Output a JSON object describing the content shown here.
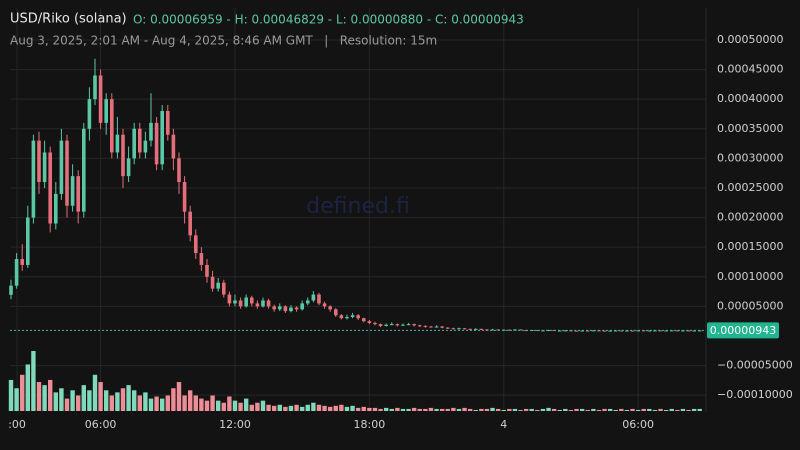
{
  "header": {
    "symbol": "USD/Riko (solana)",
    "ohlc": "O: 0.00006959 - H: 0.00046829 - L: 0.00000880 - C: 0.00000943",
    "range": "Aug 3, 2025, 2:01 AM - Aug 4, 2025, 8:46 AM GMT   |   Resolution: 15m",
    "watermark": "defined.fi"
  },
  "chart_data": {
    "type": "candlestick",
    "x": [
      2,
      2.25,
      2.5,
      2.75,
      3,
      3.25,
      3.5,
      3.75,
      4,
      4.25,
      4.5,
      4.75,
      5,
      5.25,
      5.5,
      5.75,
      6,
      6.25,
      6.5,
      6.75,
      7,
      7.25,
      7.5,
      7.75,
      8,
      8.25,
      8.5,
      8.75,
      9,
      9.25,
      9.5,
      9.75,
      10,
      10.25,
      10.5,
      10.75,
      11,
      11.25,
      11.5,
      11.75,
      12,
      12.25,
      12.5,
      12.75,
      13,
      13.25,
      13.5,
      13.75,
      14,
      14.25,
      14.5,
      14.75,
      15,
      15.25,
      15.5,
      15.75,
      16,
      16.25,
      16.5,
      16.75,
      17,
      17.25,
      17.5,
      17.75,
      18,
      18.25,
      18.5,
      18.75,
      19,
      19.25,
      19.5,
      19.75,
      20,
      20.25,
      20.5,
      20.75,
      21,
      21.25,
      21.5,
      21.75,
      22,
      22.25,
      22.5,
      22.75,
      23,
      23.25,
      23.5,
      23.75,
      24,
      24.25,
      24.5,
      24.75,
      25,
      25.25,
      25.5,
      25.75,
      26,
      26.25,
      26.5,
      26.75,
      27,
      27.25,
      27.5,
      27.75,
      28,
      28.25,
      28.5,
      28.75,
      29,
      29.25,
      29.5,
      29.75,
      30,
      30.25,
      30.5,
      30.75,
      31,
      31.25,
      31.5,
      31.75,
      32,
      32.25,
      32.5,
      32.75
    ],
    "open": [
      6.959e-05,
      8.5e-05,
      0.00013,
      0.00012,
      0.0002,
      0.00033,
      0.00026,
      0.00031,
      0.00019,
      0.00024,
      0.00033,
      0.00022,
      0.00027,
      0.00021,
      0.00035,
      0.0004,
      0.00044,
      0.00036,
      0.0004,
      0.00031,
      0.00034,
      0.00027,
      0.0003,
      0.00035,
      0.00031,
      0.00033,
      0.00036,
      0.00029,
      0.00038,
      0.00034,
      0.0003,
      0.00026,
      0.00021,
      0.00017,
      0.00014,
      0.00012,
      0.0001,
      8e-05,
      9e-05,
      7e-05,
      5.5e-05,
      6e-05,
      5e-05,
      6.5e-05,
      5.5e-05,
      5e-05,
      6e-05,
      5e-05,
      4.5e-05,
      5e-05,
      4.2e-05,
      4.8e-05,
      4.5e-05,
      5.5e-05,
      6e-05,
      7e-05,
      5.5e-05,
      5e-05,
      4.5e-05,
      3.5e-05,
      3e-05,
      3.2e-05,
      3.5e-05,
      3e-05,
      2.5e-05,
      2.2e-05,
      2e-05,
      1.7e-05,
      1.9e-05,
      2e-05,
      1.8e-05,
      1.9e-05,
      2e-05,
      1.8e-05,
      1.7e-05,
      1.6e-05,
      1.5e-05,
      1.6e-05,
      1.4e-05,
      1.3e-05,
      1.2e-05,
      1.3e-05,
      1.2e-05,
      1.1e-05,
      1.2e-05,
      1.1e-05,
      1.05e-05,
      1.1e-05,
      1e-05,
      1.05e-05,
      1e-05,
      1.1e-05,
      1e-05,
      9.5e-06,
      1e-05,
      9e-06,
      9.5e-06,
      1e-05,
      9e-06,
      9.2e-06,
      9.5e-06,
      9e-06,
      8.9e-06,
      9.2e-06,
      9e-06,
      9.5e-06,
      9e-06,
      8.9e-06,
      9e-06,
      9.3e-06,
      9e-06,
      9.2e-06,
      9e-06,
      9.5e-06,
      9e-06,
      9.2e-06,
      9.4e-06,
      9e-06,
      9.3e-06,
      9.5e-06,
      9.2e-06,
      9.4e-06,
      9.2e-06,
      9.3e-06
    ],
    "high": [
      9.5e-05,
      0.00014,
      0.000155,
      0.00022,
      0.00034,
      0.000345,
      0.00033,
      0.00032,
      0.00026,
      0.00035,
      0.00034,
      0.00029,
      0.00028,
      0.00036,
      0.00042,
      0.00046829,
      0.00045,
      0.00041,
      0.00041,
      0.00037,
      0.00035,
      0.00032,
      0.00036,
      0.00036,
      0.000345,
      0.00041,
      0.00037,
      0.00039,
      0.00039,
      0.00035,
      0.00031,
      0.00027,
      0.00022,
      0.00018,
      0.00015,
      0.00013,
      0.00011,
      9.8e-05,
      9.5e-05,
      7.5e-05,
      7e-05,
      6.5e-05,
      7e-05,
      6.8e-05,
      6e-05,
      6.5e-05,
      6.3e-05,
      5.3e-05,
      5.5e-05,
      5.2e-05,
      5.2e-05,
      5e-05,
      6e-05,
      6.5e-05,
      7.6e-05,
      7.3e-05,
      5.8e-05,
      5.2e-05,
      4.7e-05,
      3.7e-05,
      3.6e-05,
      3.9e-05,
      3.7e-05,
      3.1e-05,
      2.7e-05,
      2.4e-05,
      2.1e-05,
      2.1e-05,
      2.3e-05,
      2.1e-05,
      2.1e-05,
      2.2e-05,
      2.1e-05,
      1.9e-05,
      1.8e-05,
      1.7e-05,
      1.8e-05,
      1.7e-05,
      1.5e-05,
      1.4e-05,
      1.4e-05,
      1.35e-05,
      1.25e-05,
      1.3e-05,
      1.25e-05,
      1.15e-05,
      1.2e-05,
      1.15e-05,
      1.1e-05,
      1.1e-05,
      1.15e-05,
      1.12e-05,
      1.05e-05,
      1.05e-05,
      1.02e-05,
      1e-05,
      1.04e-05,
      1.02e-05,
      9.6e-06,
      9.8e-06,
      9.7e-06,
      9.3e-06,
      9.5e-06,
      9.4e-06,
      9.8e-06,
      9.6e-06,
      9.2e-06,
      9.3e-06,
      9.6e-06,
      9.4e-06,
      9.5e-06,
      9.3e-06,
      9.7e-06,
      9.6e-06,
      9.4e-06,
      9.6e-06,
      9.5e-06,
      9.5e-06,
      9.7e-06,
      9.6e-06,
      9.6e-06,
      9.5e-06,
      9.5e-06,
      9.6e-06
    ],
    "low": [
      6.2e-05,
      8e-05,
      0.00011,
      0.000115,
      0.00019,
      0.00024,
      0.00025,
      0.000175,
      0.00018,
      0.00023,
      0.0002,
      0.00021,
      0.00019,
      0.0002,
      0.00033,
      0.00039,
      0.00035,
      0.00034,
      0.0003,
      0.0003,
      0.00025,
      0.00026,
      0.00029,
      0.0003,
      0.0003,
      0.00032,
      0.00028,
      0.00028,
      0.00033,
      0.00028,
      0.00024,
      0.00019,
      0.00016,
      0.00013,
      0.00011,
      9e-05,
      7.5e-05,
      7.5e-05,
      6.5e-05,
      5e-05,
      5e-05,
      4.6e-05,
      4.8e-05,
      5e-05,
      4.6e-05,
      4.8e-05,
      4.6e-05,
      4.1e-05,
      4.2e-05,
      3.9e-05,
      4e-05,
      4.1e-05,
      4.3e-05,
      5.2e-05,
      5.7e-05,
      5.2e-05,
      4.6e-05,
      4.1e-05,
      3.2e-05,
      2.8e-05,
      2.8e-05,
      3e-05,
      2.7e-05,
      2.3e-05,
      2e-05,
      1.8e-05,
      1.5e-05,
      1.6e-05,
      1.8e-05,
      1.6e-05,
      1.7e-05,
      1.8e-05,
      1.6e-05,
      1.5e-05,
      1.4e-05,
      1.4e-05,
      1.4e-05,
      1.3e-05,
      1.2e-05,
      1.1e-05,
      1.1e-05,
      1.1e-05,
      1e-05,
      1.05e-05,
      1e-05,
      9.8e-06,
      1e-05,
      9.5e-06,
      9.5e-06,
      9.4e-06,
      9.6e-06,
      9.5e-06,
      9.2e-06,
      9.2e-06,
      8.8e-06,
      8.9e-06,
      9.2e-06,
      8.9e-06,
      8.9e-06,
      9e-06,
      8.9e-06,
      8.85e-06,
      8.9e-06,
      8.9e-06,
      8.9e-06,
      8.9e-06,
      8.85e-06,
      8.9e-06,
      8.9e-06,
      8.9e-06,
      8.9e-06,
      8.9e-06,
      8.9e-06,
      8.9e-06,
      8.9e-06,
      9e-06,
      8.9e-06,
      8.9e-06,
      9.1e-06,
      9e-06,
      9e-06,
      9e-06,
      9e-06,
      9.1e-06
    ],
    "close": [
      8.5e-05,
      0.00013,
      0.00012,
      0.0002,
      0.00033,
      0.00026,
      0.00031,
      0.00019,
      0.00024,
      0.00033,
      0.00022,
      0.00027,
      0.00021,
      0.00035,
      0.0004,
      0.00044,
      0.00036,
      0.0004,
      0.00031,
      0.00034,
      0.00027,
      0.0003,
      0.00035,
      0.00031,
      0.00033,
      0.00036,
      0.00029,
      0.00038,
      0.00034,
      0.0003,
      0.00026,
      0.00021,
      0.00017,
      0.00014,
      0.00012,
      0.0001,
      8e-05,
      9e-05,
      7e-05,
      5.5e-05,
      6e-05,
      5e-05,
      6.5e-05,
      5.5e-05,
      5e-05,
      6e-05,
      5e-05,
      4.5e-05,
      5e-05,
      4.2e-05,
      4.8e-05,
      4.5e-05,
      5.5e-05,
      6e-05,
      7e-05,
      5.5e-05,
      5e-05,
      4.5e-05,
      3.5e-05,
      3e-05,
      3.2e-05,
      3.5e-05,
      3e-05,
      2.5e-05,
      2.2e-05,
      2e-05,
      1.7e-05,
      1.9e-05,
      2e-05,
      1.8e-05,
      1.9e-05,
      2e-05,
      1.8e-05,
      1.7e-05,
      1.6e-05,
      1.5e-05,
      1.6e-05,
      1.4e-05,
      1.3e-05,
      1.2e-05,
      1.3e-05,
      1.2e-05,
      1.1e-05,
      1.2e-05,
      1.1e-05,
      1.05e-05,
      1.1e-05,
      1e-05,
      1.05e-05,
      1e-05,
      1.1e-05,
      1e-05,
      9.5e-06,
      1e-05,
      9e-06,
      9.5e-06,
      1e-05,
      9e-06,
      9.2e-06,
      9.5e-06,
      9e-06,
      8.9e-06,
      9.2e-06,
      9e-06,
      9.5e-06,
      9e-06,
      8.9e-06,
      9e-06,
      9.3e-06,
      9e-06,
      9.2e-06,
      9e-06,
      9.5e-06,
      9e-06,
      9.2e-06,
      9.4e-06,
      9e-06,
      9.3e-06,
      9.5e-06,
      9.2e-06,
      9.4e-06,
      9.2e-06,
      9.3e-06,
      9.43e-06
    ],
    "volume": [
      30,
      22,
      35,
      45,
      58,
      28,
      25,
      30,
      18,
      22,
      12,
      20,
      15,
      25,
      20,
      35,
      28,
      20,
      15,
      18,
      22,
      25,
      20,
      15,
      18,
      12,
      14,
      12,
      15,
      22,
      28,
      15,
      20,
      15,
      12,
      10,
      15,
      10,
      8,
      14,
      10,
      8,
      12,
      6,
      8,
      10,
      6,
      5,
      6,
      4,
      5,
      6,
      4,
      6,
      8,
      6,
      5,
      4,
      5,
      6,
      4,
      5,
      3,
      4,
      3,
      3,
      2,
      3,
      2,
      3,
      2,
      2,
      3,
      2,
      2,
      3,
      2,
      2,
      2,
      3,
      2,
      3,
      2,
      1,
      2,
      2,
      3,
      2,
      1,
      2,
      2,
      1,
      2,
      2,
      1,
      2,
      3,
      2,
      1,
      2,
      1,
      2,
      2,
      1,
      2,
      1,
      2,
      2,
      1,
      2,
      1,
      2,
      1,
      2,
      2,
      1,
      2,
      1,
      2,
      1,
      2,
      1,
      2,
      2
    ],
    "up_color": "#5cc7a5",
    "down_color": "#e46f7a",
    "up_volume_color": "#7fd9bb",
    "down_volume_color": "#ec8d97",
    "xlim": [
      1.955,
      33.03
    ],
    "xticks": [
      {
        "value": 2.27,
        "label": ":00"
      },
      {
        "value": 6,
        "label": "06:00"
      },
      {
        "value": 12,
        "label": "12:00"
      },
      {
        "value": 18,
        "label": "18:00"
      },
      {
        "value": 24,
        "label": "4"
      },
      {
        "value": 30,
        "label": "06:00"
      }
    ],
    "ylim": [
      -0.0001284,
      0.000554
    ],
    "yticks": [
      {
        "value": 0.0005,
        "label": "0.00050000"
      },
      {
        "value": 0.00045,
        "label": "0.00045000"
      },
      {
        "value": 0.0004,
        "label": "0.00040000"
      },
      {
        "value": 0.00035,
        "label": "0.00035000"
      },
      {
        "value": 0.0003,
        "label": "0.00030000"
      },
      {
        "value": 0.00025,
        "label": "0.00025000"
      },
      {
        "value": 0.0002,
        "label": "0.00020000"
      },
      {
        "value": 0.00015,
        "label": "0.00015000"
      },
      {
        "value": 0.0001,
        "label": "0.00010000"
      },
      {
        "value": 5e-05,
        "label": "0.00005000"
      },
      {
        "value": -5e-05,
        "label": "−0.00005000"
      },
      {
        "value": -0.0001,
        "label": "−0.00010000"
      }
    ],
    "grid": true,
    "last_price": {
      "value": 9.43e-06,
      "label": "0.00000943"
    }
  }
}
